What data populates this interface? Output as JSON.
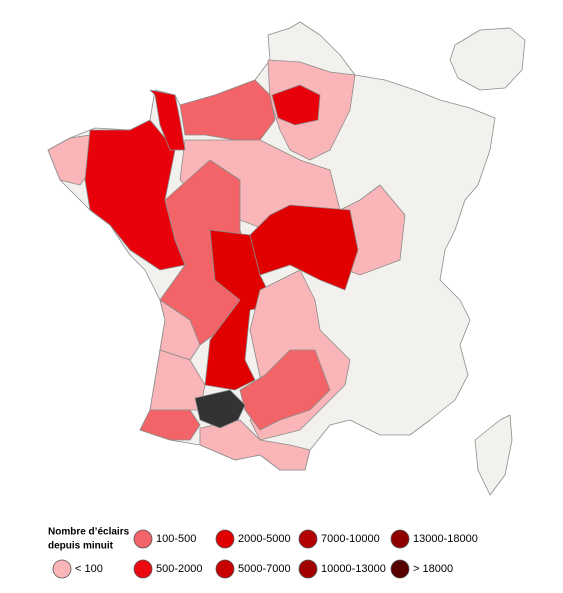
{
  "legend": {
    "title": [
      "Nombre d’éclairs",
      "depuis minuit"
    ],
    "entries": [
      {
        "label": "< 100",
        "color": "#f9b5b7"
      },
      {
        "label": "100-500",
        "color": "#f26467"
      },
      {
        "label": "500-2000",
        "color": "#ec0a12"
      },
      {
        "label": "2000-5000",
        "color": "#df0000"
      },
      {
        "label": "5000-7000",
        "color": "#c80000"
      },
      {
        "label": "7000-10000",
        "color": "#b30000"
      },
      {
        "label": "10000-13000",
        "color": "#a10000"
      },
      {
        "label": "13000-18000",
        "color": "#8e0000"
      },
      {
        "label": "> 18000",
        "color": "#560000"
      }
    ]
  }
}
